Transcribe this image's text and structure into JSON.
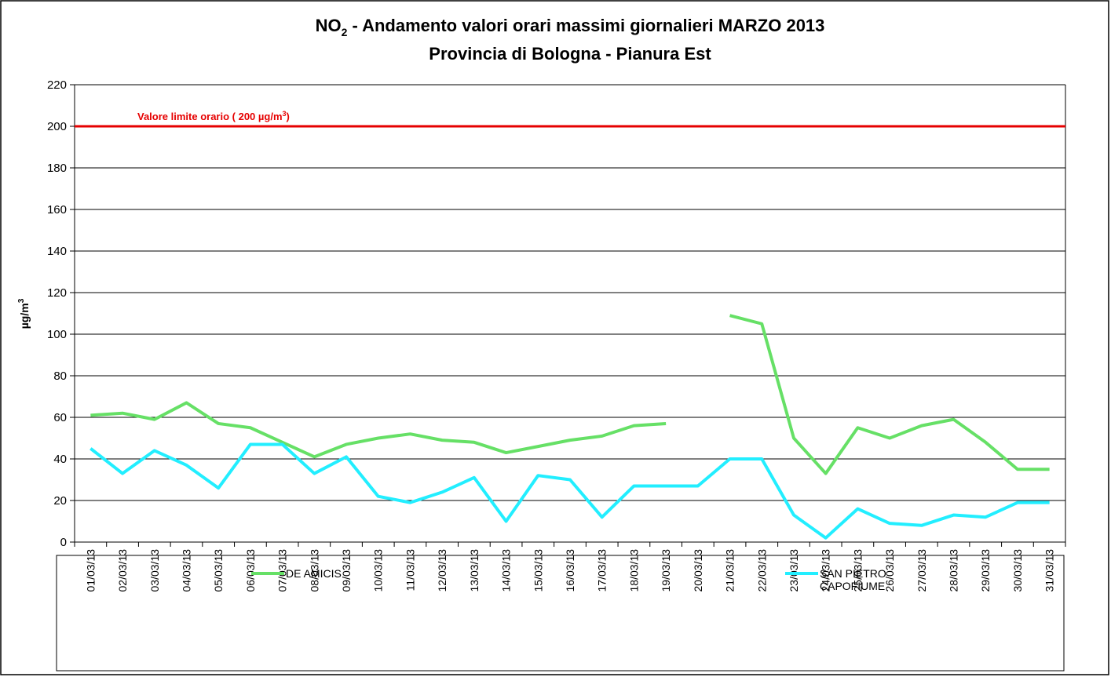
{
  "chart_data": {
    "type": "line",
    "title": {
      "prefix": "NO",
      "sub": "2",
      "rest": " - Andamento valori orari massimi giornalieri MARZO 2013"
    },
    "subtitle": "Provincia di Bologna - Pianura Est",
    "ylabel": {
      "text": "µg/m",
      "sup": "3"
    },
    "categories": [
      "01/03/13",
      "02/03/13",
      "03/03/13",
      "04/03/13",
      "05/03/13",
      "06/03/13",
      "07/03/13",
      "08/03/13",
      "09/03/13",
      "10/03/13",
      "11/03/13",
      "12/03/13",
      "13/03/13",
      "14/03/13",
      "15/03/13",
      "16/03/13",
      "17/03/13",
      "18/03/13",
      "19/03/13",
      "20/03/13",
      "21/03/13",
      "22/03/13",
      "23/03/13",
      "24/03/13",
      "25/03/13",
      "26/03/13",
      "27/03/13",
      "28/03/13",
      "29/03/13",
      "30/03/13",
      "31/03/13"
    ],
    "series": [
      {
        "name": "DE AMICIS",
        "color": "#66e066",
        "values": [
          61,
          62,
          59,
          67,
          57,
          55,
          48,
          41,
          47,
          50,
          52,
          49,
          48,
          43,
          46,
          49,
          51,
          56,
          57,
          null,
          109,
          105,
          50,
          33,
          55,
          50,
          56,
          59,
          48,
          35,
          35
        ]
      },
      {
        "name": "SAN PIETRO CAPOFIUME",
        "color": "#22eeff",
        "values": [
          45,
          33,
          44,
          37,
          26,
          47,
          47,
          33,
          41,
          22,
          19,
          24,
          31,
          10,
          32,
          30,
          12,
          27,
          27,
          27,
          40,
          40,
          13,
          2,
          16,
          9,
          8,
          13,
          12,
          19,
          19
        ]
      }
    ],
    "reference_line": {
      "value": 200,
      "color": "#e60000",
      "label": {
        "text": "Valore limite orario ( 200 µg/m",
        "sup": "3",
        "end": ")"
      }
    },
    "ylim": [
      0,
      220
    ],
    "yticks": [
      0,
      20,
      40,
      60,
      80,
      100,
      120,
      140,
      160,
      180,
      200,
      220
    ],
    "grid": true
  }
}
